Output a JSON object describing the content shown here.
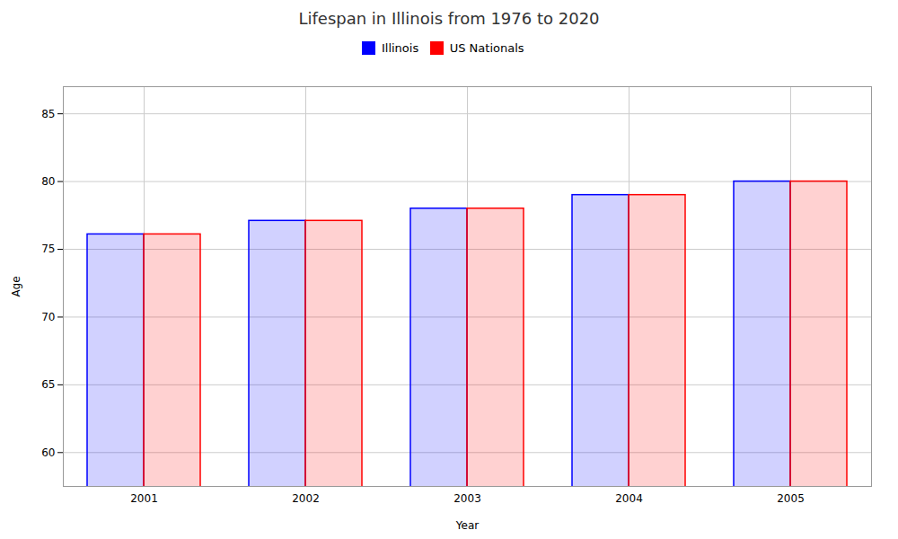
{
  "chart_data": {
    "type": "bar",
    "title": "Lifespan in Illinois from 1976 to 2020",
    "xlabel": "Year",
    "ylabel": "Age",
    "categories": [
      "2001",
      "2002",
      "2003",
      "2004",
      "2005"
    ],
    "series": [
      {
        "name": "Illinois",
        "color": "#0000ff",
        "values": [
          76.1,
          77.1,
          78.0,
          79.0,
          80.0
        ]
      },
      {
        "name": "US Nationals",
        "color": "#ff0000",
        "values": [
          76.1,
          77.1,
          78.0,
          79.0,
          80.0
        ]
      }
    ],
    "ylim": [
      57.5,
      87
    ],
    "yticks": [
      60,
      65,
      70,
      75,
      80,
      85
    ],
    "grid": true,
    "legend": "top"
  }
}
